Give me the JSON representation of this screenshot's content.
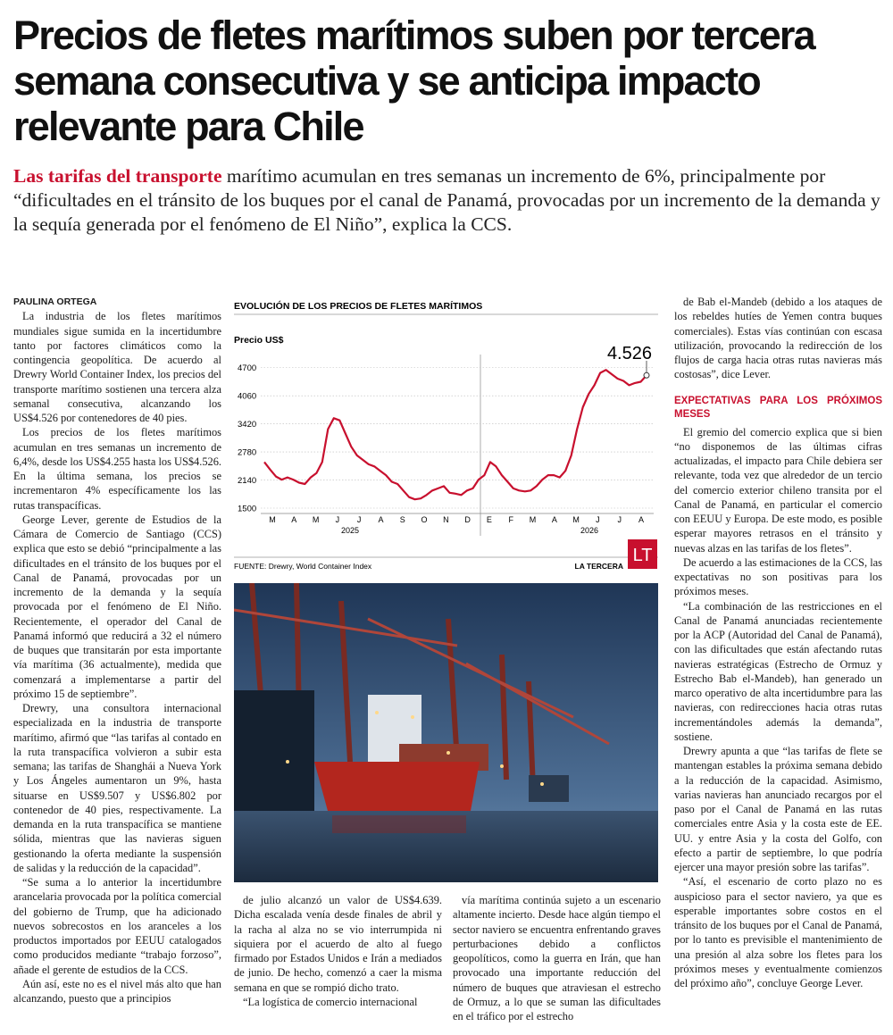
{
  "headline": "Precios de fletes marítimos suben por tercera semana consecutiva y se anticipa impacto relevante para Chile",
  "deck": {
    "highlight": "Las tarifas del transporte",
    "text": "marítimo acumulan en tres semanas un incremento de 6%, principalmente por “dificultades en el tránsito de los buques por el canal de Panamá, provocadas por un incremento de la demanda y la sequía generada por el fenómeno de El Niño”, explica la CCS."
  },
  "byline": "PAULINA ORTEGA",
  "columns": [
    [
      "La industria de los fletes marítimos mundiales sigue sumida en la incertidumbre tanto por factores climáticos como la contingencia geopolítica. De acuerdo al Drewry World Container Index, los precios del transporte marítimo sostienen una tercera alza semanal consecutiva, alcanzando los US$4.526 por contenedores de 40 pies.",
      "Los precios de los fletes marítimos acumulan en tres semanas un incremento de 6,4%, desde los US$4.255 hasta los US$4.526. En la última semana, los precios se incrementaron 4% específicamente los las rutas transpacíficas.",
      "George Lever, gerente de Estudios de la Cámara de Comercio de Santiago (CCS) explica que esto se debió “principalmente a las dificultades en el tránsito de los buques por el Canal de Panamá, provocadas por un incremento de la demanda y la sequía provocada por el fenómeno de El Niño. Recientemente, el operador del Canal de Panamá informó que reducirá a 32 el número de buques que transitarán por esta importante vía marítima (36 actualmente), medida que comenzará a implementarse a partir del próximo 15 de septiembre”.",
      "Drewry, una consultora internacional especializada en la industria de transporte marítimo, afirmó que “las tarifas al contado en la ruta transpacífica volvieron a subir esta semana; las tarifas de Shanghái a Nueva York y Los Ángeles aumentaron un 9%, hasta situarse en US$9.507 y US$6.802 por contenedor de 40 pies, respectivamente. La demanda en la ruta transpacífica se mantiene sólida, mientras que las navieras siguen gestionando la oferta mediante la suspensión de salidas y la reducción de la capacidad”.",
      "“Se suma a lo anterior la incertidumbre arancelaria provocada por la política comercial del gobierno de Trump, que ha adicionado nuevos sobrecostos en los aranceles a los productos importados por EEUU catalogados como producidos mediante “trabajo forzoso”, añade el gerente de estudios de la CCS.",
      "Aún así, este no es el nivel más alto que han alcanzando, puesto que a principios"
    ],
    [
      "de julio alcanzó un valor de US$4.639. Dicha escalada venía desde finales de abril y la racha al alza no se vio interrumpida ni siquiera por el acuerdo de alto al fuego firmado por Estados Unidos e Irán a mediados de junio. De hecho, comenzó a caer la misma semana en que se rompió dicho trato.",
      "“La logística de comercio internacional"
    ],
    [
      "vía marítima continúa sujeto a un escenario altamente incierto. Desde hace algún tiempo el sector naviero se encuentra enfrentando graves perturbaciones debido a conflictos geopolíticos, como la guerra en Irán, que han provocado una importante reducción del número de buques que atraviesan el estrecho de Ormuz, a lo que se suman las dificultades en el tráfico por el estrecho"
    ],
    [
      "de Bab el-Mandeb (debido a los ataques de los rebeldes hutíes de Yemen contra buques comerciales). Estas vías continúan con escasa utilización, provocando la redirección de los flujos de carga hacia otras rutas navieras más costosas”, dice Lever."
    ]
  ],
  "subheading": "Expectativas para los próximos meses",
  "after_subheading": [
    "El gremio del comercio explica que si bien “no disponemos de las últimas cifras actualizadas, el impacto para Chile debiera ser relevante, toda vez que alrededor de un tercio del comercio exterior chileno transita por el Canal de Panamá, en particular el comercio con EEUU y Europa. De este modo, es posible esperar mayores retrasos en el tránsito y nuevas alzas en las tarifas de los fletes”.",
    "De acuerdo a las estimaciones de la CCS, las expectativas no son positivas para los próximos meses.",
    "“La combinación de las restricciones en el Canal de Panamá anunciadas recientemente por la ACP (Autoridad del Canal de Panamá), con las dificultades que están afectando rutas navieras estratégicas (Estrecho de Ormuz y Estrecho Bab el-Mandeb), han generado un marco operativo de alta incertidumbre para las navieras, con redirecciones hacia otras rutas incrementándoles además la demanda”, sostiene.",
    "Drewry apunta a que “las tarifas de flete se mantengan estables la próxima semana debido a la reducción de la capacidad. Asimismo, varias navieras han anunciado recargos por el paso por el Canal de Panamá en las rutas comerciales entre Asia y la costa este de EE. UU. y entre Asia y la costa del Golfo, con efecto a partir de septiembre, lo que podría ejercer una mayor presión sobre las tarifas”.",
    "“Así, el escenario de corto plazo no es auspicioso para el sector naviero, ya que es esperable importantes sobre costos en el tránsito de los buques por el Canal de Panamá, por lo tanto es previsible el mantenimiento de una presión al alza sobre los fletes para los próximos meses y eventualmente comienzos del próximo año”, concluye George Lever."
  ],
  "chart": {
    "type": "line",
    "title": "EVOLUCIÓN DE LOS PRECIOS DE FLETES MARÍTIMOS",
    "y_label": "Precio US$",
    "months": [
      "M",
      "A",
      "M",
      "J",
      "J",
      "A",
      "S",
      "O",
      "N",
      "D",
      "E",
      "F",
      "M",
      "A",
      "M",
      "J",
      "J",
      "A"
    ],
    "years": [
      "2025",
      "2026"
    ],
    "values": [
      2550,
      2380,
      2220,
      2150,
      2200,
      2150,
      2080,
      2050,
      2200,
      2300,
      2550,
      3300,
      3550,
      3500,
      3200,
      2900,
      2700,
      2600,
      2500,
      2450,
      2350,
      2250,
      2100,
      2050,
      1900,
      1750,
      1700,
      1720,
      1800,
      1900,
      1950,
      2000,
      1850,
      1830,
      1800,
      1900,
      1950,
      2150,
      2250,
      2550,
      2450,
      2250,
      2100,
      1950,
      1900,
      1880,
      1900,
      2000,
      2150,
      2250,
      2250,
      2200,
      2350,
      2700,
      3300,
      3800,
      4100,
      4300,
      4580,
      4650,
      4550,
      4450,
      4400,
      4300,
      4350,
      4380,
      4526
    ],
    "annotation": "4.526",
    "color": "#c8102e",
    "ylim": [
      1500,
      5000
    ],
    "yticks": [
      1500,
      2140,
      2780,
      3420,
      4060,
      4700
    ],
    "grid": true,
    "source": "FUENTE: Drewry, World Container Index",
    "brand": "LA TERCERA",
    "logo": "LT"
  }
}
